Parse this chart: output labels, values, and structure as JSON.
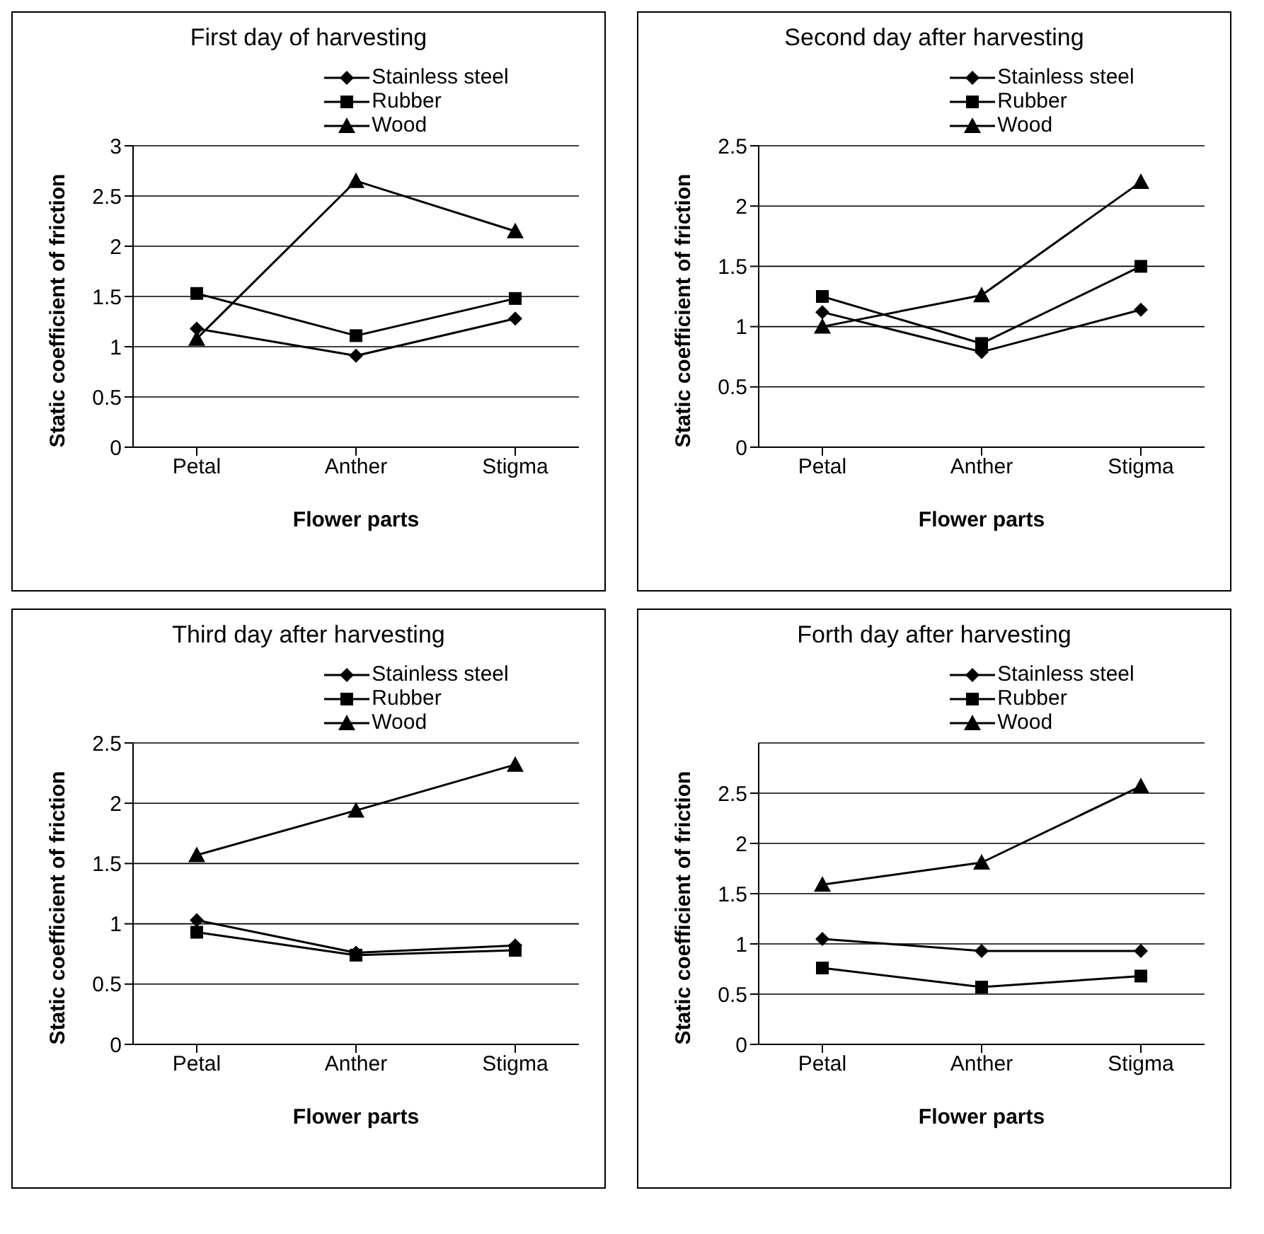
{
  "chart_data": [
    {
      "type": "line",
      "title": "First day of harvesting",
      "xlabel": "Flower parts",
      "ylabel": "Static coefficient of friction",
      "categories": [
        "Petal",
        "Anther",
        "Stigma"
      ],
      "ylim": [
        0,
        3
      ],
      "yticks": [
        0,
        0.5,
        1,
        1.5,
        2,
        2.5,
        3
      ],
      "grid": "y",
      "legend": "top",
      "series": [
        {
          "name": "Stainless steel",
          "color": "#000000",
          "marker": "diamond",
          "values": [
            1.18,
            0.91,
            1.28
          ]
        },
        {
          "name": "Rubber",
          "color": "#000000",
          "marker": "square",
          "values": [
            1.53,
            1.11,
            1.48
          ]
        },
        {
          "name": "Wood",
          "color": "#000000",
          "marker": "triangle",
          "values": [
            1.08,
            2.65,
            2.15
          ]
        }
      ]
    },
    {
      "type": "line",
      "title": "Second day after harvesting",
      "xlabel": "Flower parts",
      "ylabel": "Static coefficient of friction",
      "categories": [
        "Petal",
        "Anther",
        "Stigma"
      ],
      "ylim": [
        0,
        2.5
      ],
      "yticks": [
        0,
        0.5,
        1,
        1.5,
        2,
        2.5
      ],
      "grid": "y",
      "legend": "top",
      "series": [
        {
          "name": "Stainless steel",
          "color": "#000000",
          "marker": "diamond",
          "values": [
            1.12,
            0.79,
            1.14
          ]
        },
        {
          "name": "Rubber",
          "color": "#000000",
          "marker": "square",
          "values": [
            1.25,
            0.86,
            1.5
          ]
        },
        {
          "name": "Wood",
          "color": "#000000",
          "marker": "triangle",
          "values": [
            1.0,
            1.26,
            2.2
          ]
        }
      ]
    },
    {
      "type": "line",
      "title": "Third day after harvesting",
      "xlabel": "Flower parts",
      "ylabel": "Static coefficient of friction",
      "categories": [
        "Petal",
        "Anther",
        "Stigma"
      ],
      "ylim": [
        0,
        2.5
      ],
      "yticks": [
        0,
        0.5,
        1,
        1.5,
        2,
        2.5
      ],
      "grid": "y",
      "legend": "top",
      "series": [
        {
          "name": "Stainless steel",
          "color": "#000000",
          "marker": "diamond",
          "values": [
            1.03,
            0.76,
            0.82
          ]
        },
        {
          "name": "Rubber",
          "color": "#000000",
          "marker": "square",
          "values": [
            0.93,
            0.74,
            0.78
          ]
        },
        {
          "name": "Wood",
          "color": "#000000",
          "marker": "triangle",
          "values": [
            1.57,
            1.94,
            2.32
          ]
        }
      ]
    },
    {
      "type": "line",
      "title": "Forth day after harvesting",
      "xlabel": "Flower parts",
      "ylabel": "Static coefficient of friction",
      "categories": [
        "Petal",
        "Anther",
        "Stigma"
      ],
      "ylim": [
        0,
        3
      ],
      "yticks": [
        0,
        0.5,
        1,
        1.5,
        2,
        2.5
      ],
      "grid": "y",
      "legend": "top",
      "series": [
        {
          "name": "Stainless steel",
          "color": "#000000",
          "marker": "diamond",
          "values": [
            1.05,
            0.93,
            0.93
          ]
        },
        {
          "name": "Rubber",
          "color": "#000000",
          "marker": "square",
          "values": [
            0.76,
            0.57,
            0.68
          ]
        },
        {
          "name": "Wood",
          "color": "#000000",
          "marker": "triangle",
          "values": [
            1.59,
            1.81,
            2.57
          ]
        }
      ]
    }
  ]
}
